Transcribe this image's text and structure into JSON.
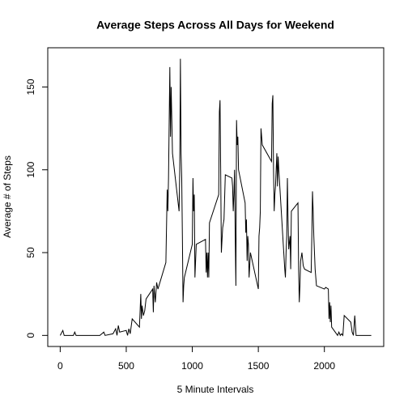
{
  "chart_data": {
    "type": "line",
    "title": "Average Steps Across All Days for Weekend",
    "xlabel": "5 Minute Intervals",
    "ylabel": "Average # of Steps",
    "color": "#000000",
    "xlim": [
      -94.2,
      2449.2
    ],
    "xticks": [
      0,
      500,
      1000,
      1500,
      2000
    ],
    "ylim": [
      -6.68,
      173.68
    ],
    "yticks": [
      0,
      50,
      100,
      150
    ],
    "x": [
      0,
      20,
      30,
      100,
      110,
      120,
      300,
      330,
      340,
      400,
      420,
      430,
      440,
      450,
      500,
      510,
      520,
      530,
      545,
      600,
      610,
      615,
      620,
      630,
      640,
      650,
      700,
      705,
      710,
      720,
      730,
      740,
      800,
      810,
      815,
      820,
      830,
      835,
      840,
      845,
      850,
      900,
      905,
      910,
      915,
      920,
      925,
      930,
      935,
      940,
      1000,
      1005,
      1010,
      1015,
      1020,
      1030,
      1100,
      1105,
      1110,
      1115,
      1120,
      1125,
      1130,
      1200,
      1205,
      1210,
      1215,
      1220,
      1230,
      1240,
      1250,
      1300,
      1305,
      1310,
      1315,
      1320,
      1325,
      1330,
      1335,
      1340,
      1345,
      1350,
      1400,
      1405,
      1410,
      1415,
      1420,
      1425,
      1430,
      1440,
      1500,
      1505,
      1510,
      1515,
      1520,
      1525,
      1530,
      1600,
      1605,
      1610,
      1615,
      1620,
      1625,
      1630,
      1640,
      1645,
      1650,
      1655,
      1700,
      1705,
      1710,
      1715,
      1720,
      1725,
      1730,
      1740,
      1745,
      1750,
      1800,
      1805,
      1810,
      1815,
      1820,
      1830,
      1840,
      1850,
      1900,
      1905,
      1910,
      1915,
      1920,
      1930,
      1940,
      2000,
      2010,
      2030,
      2035,
      2040,
      2045,
      2050,
      2055,
      2100,
      2110,
      2120,
      2130,
      2140,
      2150,
      2200,
      2210,
      2220,
      2230,
      2240,
      2355
    ],
    "values": [
      0,
      3,
      0,
      0,
      2,
      0,
      0,
      2,
      0,
      1,
      4,
      0,
      6,
      2,
      3,
      0,
      4,
      1,
      10,
      5,
      25,
      10,
      18,
      12,
      15,
      22,
      28,
      14,
      30,
      20,
      32,
      28,
      44,
      88,
      75,
      95,
      162,
      120,
      150,
      130,
      110,
      75,
      100,
      167,
      110,
      95,
      60,
      20,
      30,
      35,
      55,
      95,
      75,
      85,
      35,
      55,
      58,
      38,
      50,
      35,
      50,
      35,
      68,
      85,
      135,
      142,
      100,
      50,
      65,
      70,
      97,
      95,
      90,
      75,
      85,
      100,
      60,
      30,
      130,
      115,
      120,
      100,
      80,
      62,
      70,
      45,
      60,
      55,
      35,
      50,
      28,
      60,
      65,
      75,
      125,
      120,
      115,
      105,
      140,
      145,
      100,
      75,
      85,
      90,
      110,
      90,
      108,
      100,
      40,
      35,
      50,
      60,
      95,
      70,
      52,
      60,
      40,
      75,
      80,
      40,
      20,
      30,
      45,
      50,
      42,
      40,
      38,
      60,
      87,
      75,
      60,
      40,
      30,
      28,
      29,
      28,
      10,
      20,
      8,
      18,
      5,
      0,
      2,
      0,
      1,
      0,
      12,
      8,
      2,
      0,
      12,
      0,
      0
    ]
  }
}
